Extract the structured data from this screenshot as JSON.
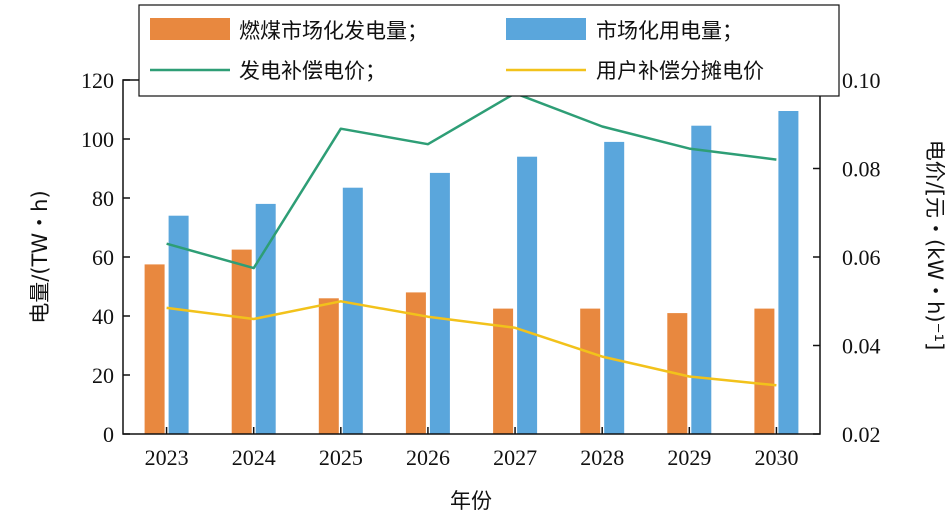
{
  "chart_data": {
    "type": "bar",
    "categories": [
      "2023",
      "2024",
      "2025",
      "2026",
      "2027",
      "2028",
      "2029",
      "2030"
    ],
    "series": [
      {
        "name": "燃煤市场化发电量；",
        "kind": "bar",
        "axis": "left",
        "color": "#e8883f",
        "values": [
          57.5,
          62.5,
          46,
          48,
          42.5,
          42.5,
          41,
          42.5
        ]
      },
      {
        "name": "市场化用电量；",
        "kind": "bar",
        "axis": "left",
        "color": "#5aa6dc",
        "values": [
          74,
          78,
          83.5,
          88.5,
          94,
          99,
          104.5,
          109.5
        ]
      },
      {
        "name": "发电补偿电价；",
        "kind": "line",
        "axis": "right",
        "color": "#2e9e76",
        "values": [
          0.063,
          0.0575,
          0.089,
          0.0855,
          0.097,
          0.0895,
          0.0845,
          0.082
        ]
      },
      {
        "name": "用户补偿分摊电价",
        "kind": "line",
        "axis": "right",
        "color": "#f2c21b",
        "values": [
          0.0485,
          0.046,
          0.05,
          0.0465,
          0.044,
          0.0375,
          0.033,
          0.031
        ]
      }
    ],
    "xlabel": "年份",
    "ylabel": "电量/(TW・h)",
    "ylabel_right": "电价/[元・(kW・h)⁻¹]",
    "ylim": [
      0,
      120
    ],
    "ylim_right": [
      0.02,
      0.1
    ],
    "yticks": [
      "0",
      "20",
      "40",
      "60",
      "80",
      "100",
      "120"
    ],
    "yticks_right": [
      "0.02",
      "0.04",
      "0.06",
      "0.08",
      "0.10"
    ],
    "legend_position": "top"
  }
}
